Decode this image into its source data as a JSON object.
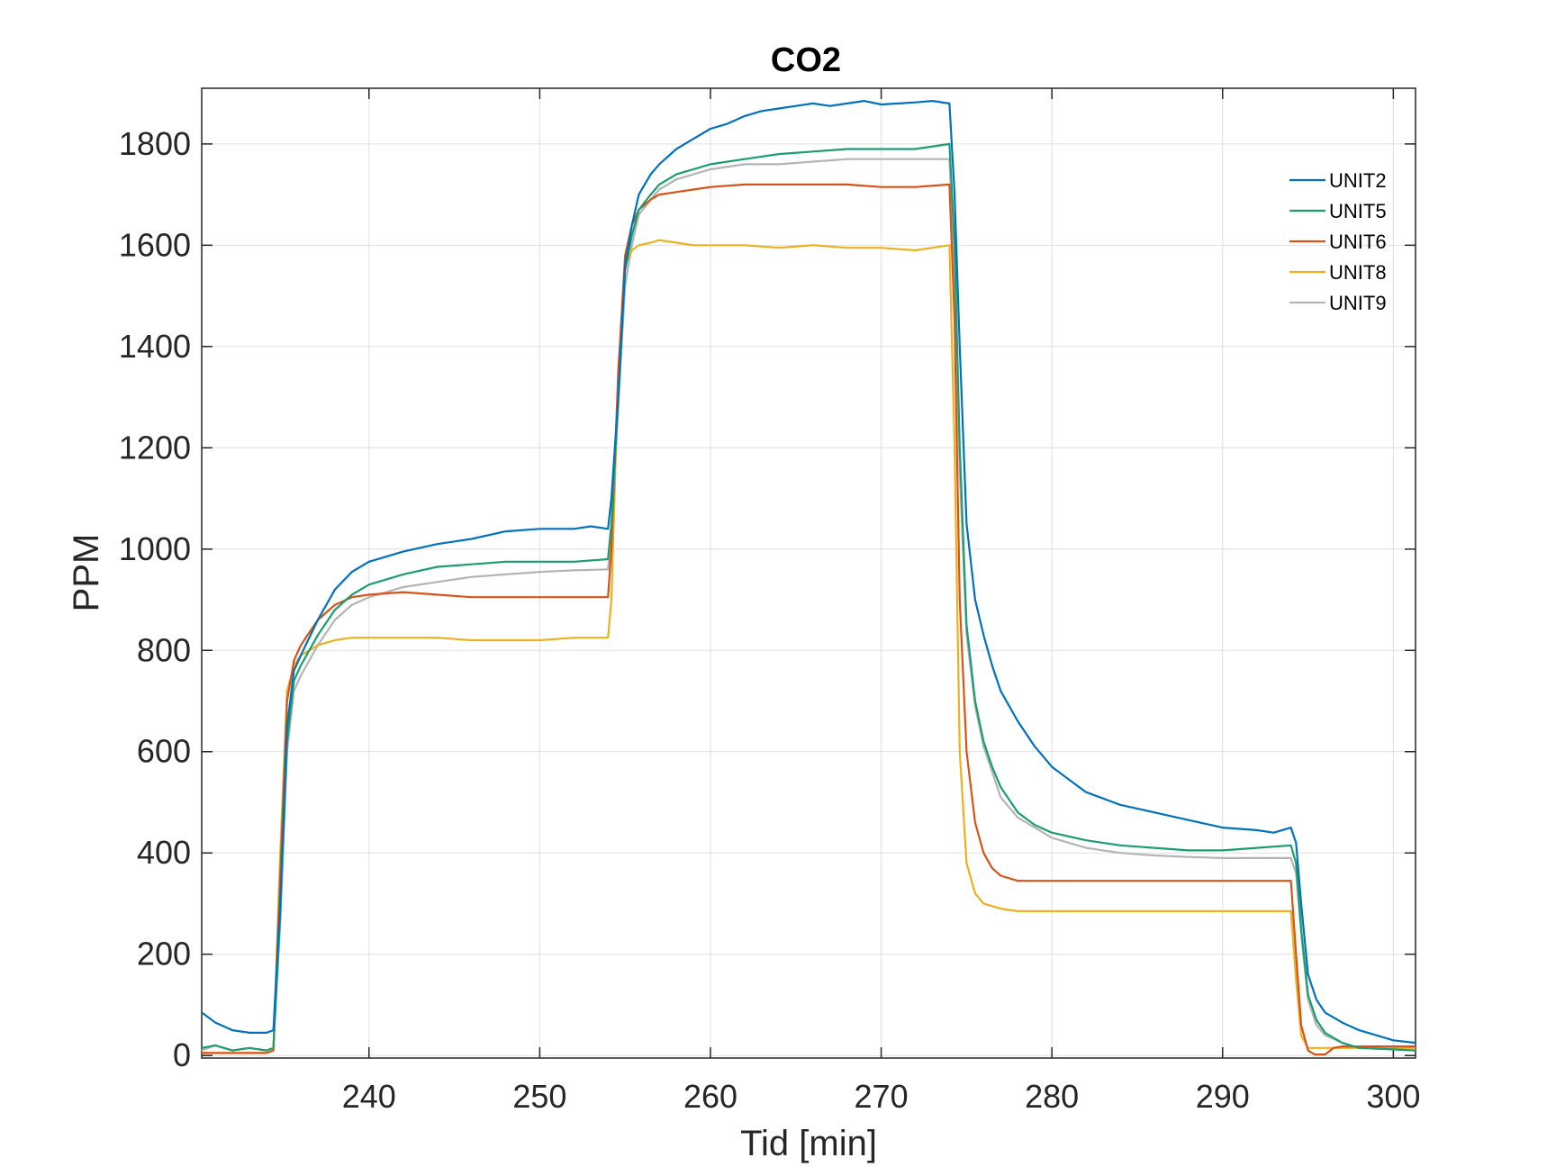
{
  "chart_data": {
    "type": "line",
    "title": "CO2",
    "xlabel": "Tid [min]",
    "ylabel": "PPM",
    "xlim": [
      230.2,
      301.3
    ],
    "ylim": [
      -5,
      1910
    ],
    "xticks": [
      240,
      250,
      260,
      270,
      280,
      290,
      300
    ],
    "yticks": [
      0,
      200,
      400,
      600,
      800,
      1000,
      1200,
      1400,
      1600,
      1800
    ],
    "grid": true,
    "legend_position": "top-right",
    "series": [
      {
        "name": "UNIT2",
        "color": "#0072BD",
        "x": [
          230.2,
          231,
          232,
          233,
          234,
          234.4,
          234.8,
          235.2,
          235.6,
          236,
          237,
          238,
          239,
          240,
          242,
          244,
          246,
          248,
          250,
          252,
          253,
          254,
          254.2,
          254.6,
          255,
          255.4,
          255.8,
          256.5,
          257,
          258,
          259,
          260,
          261,
          262,
          263,
          264,
          265,
          266,
          267,
          268,
          269,
          270,
          271,
          272,
          273,
          274,
          274.3,
          274.6,
          275,
          275.5,
          276,
          276.5,
          277,
          278,
          279,
          280,
          281,
          282,
          284,
          286,
          288,
          290,
          292,
          293,
          294,
          294.3,
          294.6,
          295,
          295.5,
          296,
          297,
          298,
          299,
          300,
          301.3
        ],
        "values": [
          85,
          65,
          50,
          45,
          45,
          50,
          300,
          650,
          760,
          790,
          860,
          920,
          955,
          975,
          995,
          1010,
          1020,
          1035,
          1040,
          1040,
          1045,
          1040,
          1100,
          1300,
          1560,
          1640,
          1700,
          1740,
          1760,
          1790,
          1810,
          1830,
          1840,
          1855,
          1865,
          1870,
          1875,
          1880,
          1875,
          1880,
          1885,
          1878,
          1880,
          1882,
          1885,
          1880,
          1700,
          1400,
          1050,
          900,
          830,
          770,
          720,
          660,
          610,
          570,
          545,
          520,
          495,
          480,
          465,
          450,
          445,
          440,
          450,
          420,
          300,
          160,
          110,
          85,
          65,
          50,
          40,
          30,
          25
        ]
      },
      {
        "name": "UNIT5",
        "color": "#1A9E6E",
        "x": [
          230.2,
          231,
          232,
          233,
          234,
          234.4,
          234.8,
          235.2,
          235.6,
          236,
          237,
          238,
          239,
          240,
          242,
          244,
          246,
          248,
          250,
          252,
          254,
          254.2,
          254.6,
          255,
          255.4,
          255.8,
          256.5,
          257,
          258,
          259,
          260,
          262,
          264,
          266,
          268,
          270,
          272,
          274,
          274.3,
          274.6,
          275,
          275.5,
          276,
          276.5,
          277,
          278,
          279,
          280,
          282,
          284,
          286,
          288,
          290,
          292,
          294,
          294.3,
          294.6,
          295,
          295.5,
          296,
          297,
          298,
          300,
          301.3
        ],
        "values": [
          15,
          20,
          10,
          15,
          10,
          15,
          280,
          620,
          740,
          770,
          830,
          880,
          910,
          930,
          950,
          965,
          970,
          975,
          975,
          975,
          980,
          1050,
          1300,
          1550,
          1620,
          1670,
          1700,
          1720,
          1740,
          1750,
          1760,
          1770,
          1780,
          1785,
          1790,
          1790,
          1790,
          1800,
          1600,
          1200,
          850,
          700,
          620,
          570,
          530,
          480,
          455,
          440,
          425,
          415,
          410,
          405,
          405,
          410,
          415,
          380,
          250,
          120,
          70,
          45,
          25,
          15,
          12,
          10
        ]
      },
      {
        "name": "UNIT6",
        "color": "#D95319",
        "x": [
          230.2,
          231,
          232,
          233,
          234,
          234.4,
          234.8,
          235.2,
          235.6,
          236,
          237,
          238,
          239,
          240,
          242,
          244,
          246,
          248,
          250,
          252,
          254,
          254.2,
          254.6,
          255,
          255.4,
          255.8,
          256.5,
          257,
          258,
          259,
          260,
          262,
          264,
          266,
          268,
          270,
          272,
          274,
          274.3,
          274.6,
          275,
          275.5,
          276,
          276.5,
          277,
          278,
          280,
          282,
          284,
          286,
          288,
          290,
          292,
          294,
          294.3,
          294.6,
          295,
          295.4,
          296,
          296.5,
          297,
          298,
          300,
          301.3
        ],
        "values": [
          5,
          5,
          5,
          5,
          5,
          10,
          350,
          700,
          780,
          810,
          860,
          890,
          905,
          910,
          915,
          910,
          905,
          905,
          905,
          905,
          905,
          1000,
          1350,
          1580,
          1640,
          1670,
          1690,
          1700,
          1705,
          1710,
          1715,
          1720,
          1720,
          1720,
          1720,
          1715,
          1715,
          1720,
          1450,
          900,
          600,
          460,
          400,
          370,
          355,
          345,
          345,
          345,
          345,
          345,
          345,
          345,
          345,
          345,
          200,
          60,
          10,
          2,
          2,
          15,
          18,
          18,
          18,
          18
        ]
      },
      {
        "name": "UNIT8",
        "color": "#EDB120",
        "x": [
          230.2,
          231,
          232,
          233,
          234,
          234.4,
          234.8,
          235.2,
          235.6,
          236,
          237,
          238,
          239,
          240,
          242,
          244,
          246,
          248,
          250,
          252,
          254,
          254.2,
          254.6,
          255,
          255.4,
          255.8,
          256.5,
          257,
          258,
          259,
          260,
          262,
          264,
          266,
          268,
          270,
          272,
          274,
          274.3,
          274.6,
          275,
          275.5,
          276,
          277,
          278,
          280,
          282,
          284,
          286,
          288,
          290,
          292,
          294,
          294.3,
          294.6,
          295,
          295.5,
          296,
          298,
          300,
          301.3
        ],
        "values": [
          5,
          5,
          5,
          5,
          5,
          10,
          400,
          720,
          770,
          790,
          810,
          820,
          825,
          825,
          825,
          825,
          820,
          820,
          820,
          825,
          825,
          900,
          1350,
          1560,
          1590,
          1600,
          1605,
          1610,
          1605,
          1600,
          1600,
          1600,
          1595,
          1600,
          1595,
          1595,
          1590,
          1600,
          1200,
          600,
          380,
          320,
          300,
          290,
          285,
          285,
          285,
          285,
          285,
          285,
          285,
          285,
          285,
          150,
          40,
          15,
          15,
          15,
          15,
          15,
          15
        ]
      },
      {
        "name": "UNIT9",
        "color": "#B4B4B4",
        "x": [
          230.2,
          231,
          232,
          233,
          234,
          234.4,
          234.8,
          235.2,
          235.6,
          236,
          237,
          238,
          239,
          240,
          242,
          244,
          246,
          248,
          250,
          252,
          254,
          254.2,
          254.6,
          255,
          255.4,
          255.8,
          256.5,
          257,
          258,
          259,
          260,
          262,
          264,
          266,
          268,
          270,
          272,
          274,
          274.3,
          274.6,
          275,
          275.5,
          276,
          276.5,
          277,
          278,
          280,
          282,
          284,
          286,
          288,
          290,
          292,
          294,
          294.3,
          294.6,
          295,
          295.5,
          296,
          297,
          298,
          300,
          301.3
        ],
        "values": [
          10,
          20,
          10,
          15,
          10,
          15,
          260,
          600,
          720,
          750,
          810,
          860,
          890,
          905,
          925,
          935,
          945,
          950,
          955,
          958,
          960,
          1030,
          1280,
          1520,
          1600,
          1660,
          1690,
          1710,
          1730,
          1740,
          1750,
          1760,
          1760,
          1765,
          1770,
          1770,
          1770,
          1770,
          1550,
          1150,
          830,
          690,
          610,
          560,
          510,
          470,
          430,
          410,
          400,
          395,
          392,
          390,
          390,
          390,
          360,
          240,
          110,
          60,
          40,
          25,
          15,
          12,
          10
        ]
      }
    ]
  }
}
